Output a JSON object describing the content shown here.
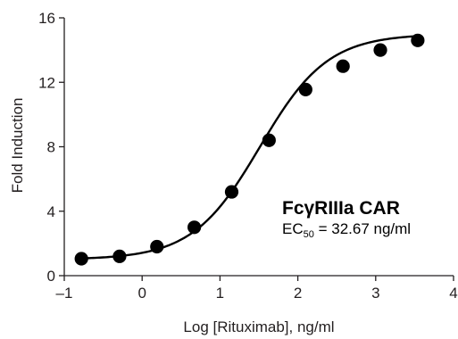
{
  "chart_data": {
    "type": "scatter",
    "title": "",
    "xlabel": "Log [Rituximab], ng/ml",
    "ylabel": "Fold Induction",
    "xlim": [
      -1,
      4
    ],
    "ylim": [
      0,
      16
    ],
    "xticks": [
      "–1",
      "0",
      "1",
      "2",
      "3",
      "4"
    ],
    "yticks": [
      "0",
      "4",
      "8",
      "12",
      "16"
    ],
    "grid": false,
    "series": [
      {
        "x": [
          -0.78,
          -0.29,
          0.19,
          0.67,
          1.15,
          1.63,
          2.1,
          2.58,
          3.06,
          3.54
        ],
        "y": [
          1.05,
          1.2,
          1.8,
          3.0,
          5.2,
          8.4,
          11.55,
          13.0,
          14.0,
          14.6
        ]
      }
    ],
    "fit_curve": {
      "model": "4PL",
      "bottom": 1.0,
      "top": 15.0,
      "ec50_log": 1.514,
      "hill": 1.0,
      "x_range": [
        -0.78,
        3.54
      ]
    },
    "annotation": {
      "title": "FcγRIIIa CAR",
      "ec_prefix": "EC",
      "ec_subscript": "50",
      "ec_value": " = 32.67 ng/ml"
    },
    "colors": {
      "points": "#000000",
      "curve": "#000000",
      "axis": "#231f20"
    }
  }
}
